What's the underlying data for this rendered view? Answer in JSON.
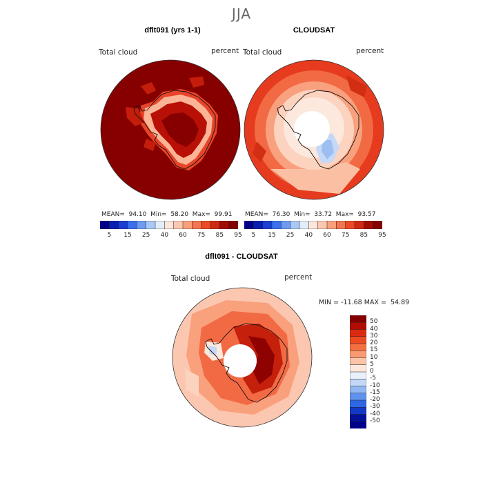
{
  "title": "JJA",
  "panels": [
    {
      "title": "dflt091 (yrs 1-1)",
      "variable": "Total cloud",
      "units": "percent",
      "stats": "MEAN=  94.10  Min=  58.20  Max=  99.91"
    },
    {
      "title": "CLOUDSAT",
      "variable": "Total cloud",
      "units": "percent",
      "stats": "MEAN=  76.30  Min=  33.72  Max=  93.57"
    },
    {
      "title": "dflt091 - CLOUDSAT",
      "variable": "Total cloud",
      "units": "percent",
      "minmax": "MIN = -11.68 MAX =  54.89"
    }
  ],
  "colorbar_top": {
    "labels": [
      "5",
      "15",
      "25",
      "40",
      "60",
      "75",
      "85",
      "95"
    ],
    "colors": [
      "#00008b",
      "#0a1fb0",
      "#1a3fd6",
      "#3b6fee",
      "#6f9cf2",
      "#a8c8f7",
      "#e3edfa",
      "#fde6dc",
      "#fcc7b0",
      "#f9a07c",
      "#f47550",
      "#ea4a26",
      "#cf2a12",
      "#a10c05",
      "#840000"
    ]
  },
  "colorbar_diff": {
    "labels": [
      "50",
      "40",
      "30",
      "20",
      "15",
      "10",
      "5",
      "0",
      "-5",
      "-10",
      "-15",
      "-20",
      "-30",
      "-40",
      "-50"
    ],
    "colors": [
      "#840000",
      "#b40c05",
      "#dc2a10",
      "#ee4a22",
      "#f6703f",
      "#fa9a72",
      "#fcc4a8",
      "#fde7dc",
      "#e9f0fb",
      "#c2d8f6",
      "#92b8f1",
      "#5f92ec",
      "#2f66e3",
      "#1238c4",
      "#03119a",
      "#00008b"
    ]
  }
}
